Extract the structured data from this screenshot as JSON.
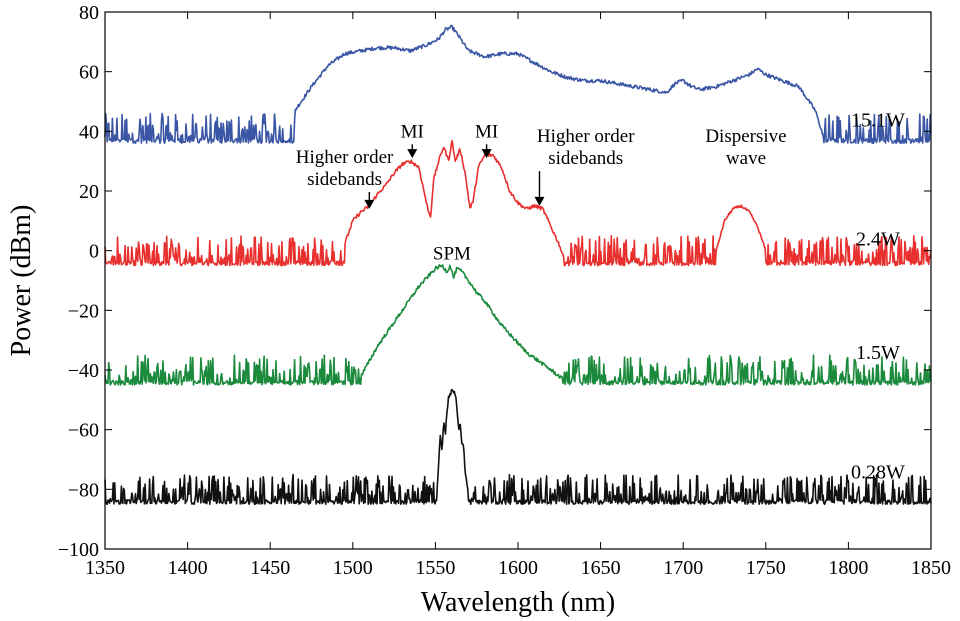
{
  "chart_data": {
    "type": "line",
    "title": "",
    "xlabel": "Wavelength (nm)",
    "ylabel": "Power (dBm)",
    "xlim": [
      1350,
      1850
    ],
    "ylim": [
      -100,
      80
    ],
    "xticks": [
      1350,
      1400,
      1450,
      1500,
      1550,
      1600,
      1650,
      1700,
      1750,
      1800,
      1850
    ],
    "yticks": [
      -100,
      -80,
      -60,
      -40,
      -20,
      0,
      20,
      40,
      60,
      80
    ],
    "ytick_labels": [
      "−100",
      "−80",
      "−60",
      "−40",
      "−20",
      "0",
      "20",
      "40",
      "60",
      "80"
    ],
    "grid": false,
    "series": [
      {
        "name": "15.1W",
        "color": "#3a56a5",
        "noise": {
          "floor": 36,
          "amp": 10
        },
        "spectrum_range": [
          1465,
          1785
        ],
        "x": [
          1465,
          1475,
          1485,
          1495,
          1505,
          1515,
          1525,
          1535,
          1545,
          1552,
          1556,
          1560,
          1564,
          1570,
          1580,
          1590,
          1600,
          1610,
          1620,
          1630,
          1640,
          1650,
          1660,
          1670,
          1680,
          1690,
          1695,
          1700,
          1705,
          1710,
          1720,
          1730,
          1740,
          1745,
          1750,
          1760,
          1770,
          1780,
          1785
        ],
        "y": [
          47,
          55,
          62,
          66,
          67,
          68,
          68,
          67,
          69,
          71,
          74,
          75,
          72,
          67,
          65,
          66,
          66,
          63,
          60,
          58,
          57,
          57,
          56,
          55,
          54,
          53,
          56,
          57,
          55,
          54,
          55,
          57,
          59,
          61,
          59,
          57,
          55,
          47,
          38
        ],
        "label": "15.1W"
      },
      {
        "name": "2.4W",
        "color": "#e8302e",
        "noise": {
          "floor": -5,
          "amp": 10
        },
        "spectrum_range": [
          1495,
          1628
        ],
        "x": [
          1495,
          1500,
          1505,
          1510,
          1515,
          1520,
          1525,
          1530,
          1535,
          1540,
          1545,
          1547,
          1549,
          1552,
          1555,
          1558,
          1560,
          1562,
          1565,
          1568,
          1571,
          1573,
          1576,
          1580,
          1585,
          1590,
          1595,
          1600,
          1605,
          1610,
          1615,
          1620,
          1625,
          1628
        ],
        "y": [
          2,
          10,
          13,
          15,
          19,
          22,
          26,
          29,
          30,
          28,
          15,
          11,
          24,
          30,
          35,
          30,
          37,
          30,
          34,
          26,
          14,
          17,
          28,
          32,
          32,
          28,
          20,
          16,
          14,
          15,
          14,
          8,
          2,
          -3
        ],
        "peak2": {
          "x": [
            1720,
            1725,
            1730,
            1735,
            1740,
            1745,
            1750
          ],
          "y": [
            0,
            10,
            14,
            15,
            13,
            8,
            0
          ]
        },
        "label": "2.4W"
      },
      {
        "name": "1.5W",
        "color": "#1b8a3c",
        "noise": {
          "floor": -45,
          "amp": 10
        },
        "spectrum_range": [
          1505,
          1627
        ],
        "x": [
          1505,
          1510,
          1515,
          1520,
          1525,
          1530,
          1535,
          1540,
          1545,
          1550,
          1554,
          1557,
          1559,
          1561,
          1563,
          1566,
          1570,
          1575,
          1580,
          1585,
          1590,
          1595,
          1600,
          1605,
          1610,
          1615,
          1620,
          1627
        ],
        "y": [
          -42,
          -37,
          -32,
          -28,
          -24,
          -20,
          -16,
          -12,
          -9,
          -6,
          -5,
          -7,
          -5,
          -9,
          -6,
          -7,
          -10,
          -14,
          -17,
          -21,
          -25,
          -28,
          -31,
          -34,
          -36,
          -38,
          -40,
          -43
        ],
        "label": "1.5W"
      },
      {
        "name": "0.28W",
        "color": "#111111",
        "noise": {
          "floor": -85,
          "amp": 10
        },
        "spectrum_range": [
          1551,
          1570
        ],
        "x": [
          1551,
          1553,
          1554,
          1555,
          1556,
          1557,
          1558,
          1560,
          1562,
          1563,
          1564,
          1565,
          1566,
          1567,
          1568,
          1570
        ],
        "y": [
          -80,
          -62,
          -67,
          -57,
          -62,
          -54,
          -49,
          -47,
          -48,
          -52,
          -60,
          -57,
          -65,
          -65,
          -74,
          -82
        ],
        "label": "0.28W"
      }
    ],
    "annotations": [
      {
        "lines": [
          "SPM"
        ],
        "x": 1560,
        "y": -3,
        "arrow": false
      },
      {
        "lines": [
          "MI"
        ],
        "x": 1536,
        "y": 38,
        "arrow_to": [
          1536,
          31
        ]
      },
      {
        "lines": [
          "MI"
        ],
        "x": 1581,
        "y": 38,
        "arrow_to": [
          1581,
          31
        ]
      },
      {
        "lines": [
          "Higher order",
          "sidebands"
        ],
        "x": 1495,
        "y": 22,
        "arrow_to": [
          1510,
          14
        ]
      },
      {
        "lines": [
          "Higher order",
          "sidebands"
        ],
        "x": 1641,
        "y": 29,
        "arrow_to": [
          1613,
          15
        ]
      },
      {
        "lines": [
          "Dispersive",
          "wave"
        ],
        "x": 1738,
        "y": 29,
        "arrow": false
      }
    ]
  }
}
